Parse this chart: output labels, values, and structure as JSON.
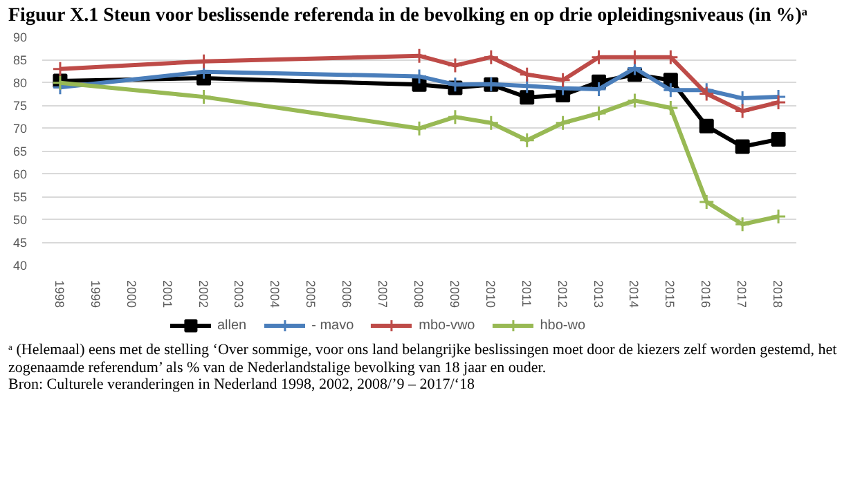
{
  "chart_data": {
    "type": "line",
    "title": "Figuur X.1 Steun voor beslissende referenda in de bevolking en op drie opleidingsniveaus (in %)ᵃ",
    "x": [
      1998,
      2002,
      2008,
      2009,
      2010,
      2011,
      2012,
      2013,
      2014,
      2015,
      2016,
      2017,
      2018
    ],
    "series": [
      {
        "name": "allen",
        "color": "#000000",
        "marker": "square",
        "values": [
          80.3,
          80.9,
          79.5,
          78.8,
          79.5,
          76.7,
          77.2,
          80.1,
          81.7,
          80.5,
          70.4,
          65.9,
          67.5
        ]
      },
      {
        "name": "- mavo",
        "color": "#4a7ebb",
        "marker": "cross",
        "values": [
          78.9,
          82.3,
          81.3,
          79.5,
          79.6,
          79.2,
          78.7,
          78.5,
          83.1,
          78.3,
          78.3,
          76.5,
          76.8
        ]
      },
      {
        "name": "mbo-vwo",
        "color": "#be4b48",
        "marker": "cross",
        "values": [
          82.9,
          84.6,
          85.8,
          83.7,
          85.5,
          81.7,
          80.5,
          85.5,
          85.5,
          85.5,
          77.5,
          73.7,
          75.6
        ]
      },
      {
        "name": "hbo-wo",
        "color": "#98b954",
        "marker": "cross",
        "values": [
          79.9,
          76.8,
          69.9,
          72.4,
          71.1,
          67.3,
          71.1,
          73.2,
          76.0,
          74.4,
          53.8,
          48.9,
          50.6
        ]
      }
    ],
    "xlim": [
      1997.5,
      2018.5
    ],
    "xticks": [
      1998,
      1999,
      2000,
      2001,
      2002,
      2003,
      2004,
      2005,
      2006,
      2007,
      2008,
      2009,
      2010,
      2011,
      2012,
      2013,
      2014,
      2015,
      2016,
      2017,
      2018
    ],
    "ylim": [
      40,
      90
    ],
    "yticks": [
      40,
      45,
      50,
      55,
      60,
      65,
      70,
      75,
      80,
      85,
      90
    ],
    "grid": "y",
    "legend": "bottom",
    "line_style": "solid",
    "annotations": [
      "ᵃ (Helemaal) eens met de stelling ‘Over sommige, voor ons land belangrijke beslissingen moet door de kiezers zelf worden gestemd, het zogenaamde referendum’ als % van de Nederlandstalige bevolking van 18 jaar en ouder.",
      "Bron: Culturele veranderingen in Nederland 1998, 2002, 2008/’9 – 2017/‘18"
    ]
  }
}
